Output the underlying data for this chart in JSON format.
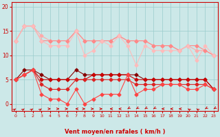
{
  "xlabel": "Vent moyen/en rafales ( km/h )",
  "bg_color": "#cce8e8",
  "grid_color": "#99cccc",
  "xlim": [
    -0.5,
    23.5
  ],
  "ylim": [
    -1.5,
    21
  ],
  "yticks": [
    0,
    5,
    10,
    15,
    20
  ],
  "xticks": [
    0,
    1,
    2,
    3,
    4,
    5,
    6,
    7,
    8,
    9,
    10,
    11,
    12,
    13,
    14,
    15,
    16,
    17,
    18,
    19,
    20,
    21,
    22,
    23
  ],
  "hours": [
    0,
    1,
    2,
    3,
    4,
    5,
    6,
    7,
    8,
    9,
    10,
    11,
    12,
    13,
    14,
    15,
    16,
    17,
    18,
    19,
    20,
    21,
    22,
    23
  ],
  "gust1": [
    13,
    16,
    16,
    14,
    13,
    13,
    13,
    15,
    13,
    13,
    13,
    13,
    14,
    13,
    13,
    13,
    12,
    12,
    12,
    11,
    12,
    11,
    11,
    10
  ],
  "gust2": [
    13,
    16,
    16,
    13,
    13,
    13,
    13,
    15,
    13,
    13,
    13,
    13,
    14,
    13,
    13,
    13,
    12,
    12,
    12,
    11,
    12,
    12,
    11,
    10
  ],
  "gust3": [
    13,
    16,
    16,
    13,
    12,
    12,
    12,
    15,
    10,
    11,
    13,
    12,
    14,
    12,
    8,
    12,
    11,
    11,
    11,
    11,
    12,
    9,
    12,
    10
  ],
  "wind1": [
    5,
    7,
    7,
    6,
    5,
    5,
    5,
    7,
    6,
    6,
    6,
    6,
    6,
    6,
    6,
    5,
    5,
    5,
    5,
    5,
    5,
    5,
    5,
    3
  ],
  "wind2": [
    5,
    6,
    7,
    5,
    5,
    5,
    5,
    5,
    5,
    6,
    6,
    6,
    6,
    6,
    5,
    5,
    5,
    5,
    5,
    5,
    5,
    5,
    5,
    3
  ],
  "wind3": [
    5,
    6,
    7,
    4,
    3,
    3,
    3,
    5,
    5,
    5,
    5,
    5,
    5,
    5,
    4,
    4,
    4,
    4,
    4,
    4,
    4,
    4,
    4,
    3
  ],
  "wind4": [
    5,
    6,
    7,
    2,
    1,
    1,
    0,
    3,
    0,
    1,
    2,
    2,
    2,
    6,
    2,
    3,
    3,
    4,
    4,
    4,
    3,
    3,
    4,
    3
  ],
  "c_gust1": "#ffaaaa",
  "c_gust2": "#ff8888",
  "c_gust3": "#ffbbbb",
  "c_wind1": "#880000",
  "c_wind2": "#cc0000",
  "c_wind3": "#dd2222",
  "c_wind4": "#ff4444",
  "wind_dirs": [
    225,
    225,
    225,
    225,
    270,
    270,
    270,
    90,
    270,
    270,
    270,
    90,
    90,
    45,
    45,
    45,
    45,
    90,
    90,
    90,
    135,
    135,
    45,
    45
  ]
}
